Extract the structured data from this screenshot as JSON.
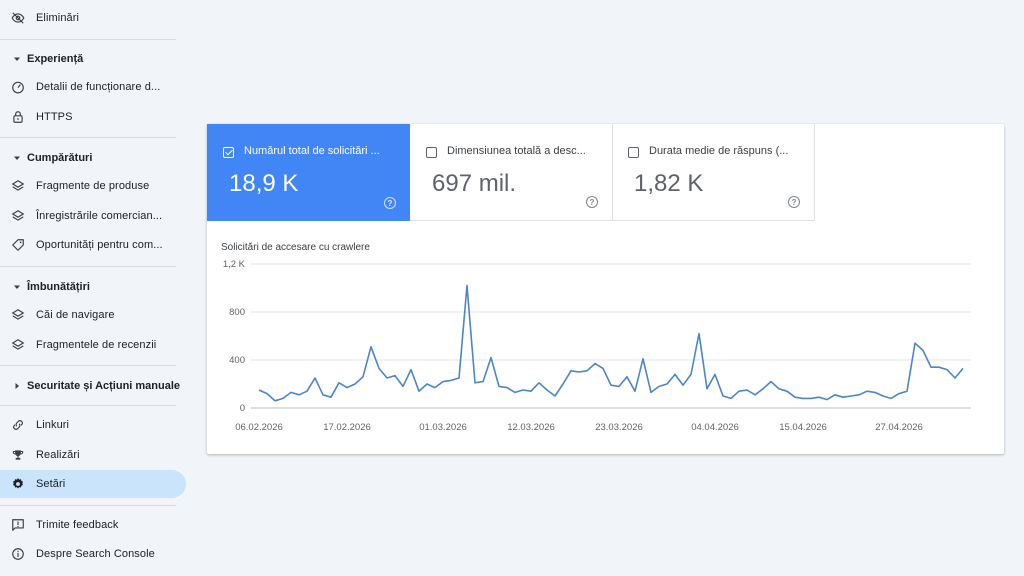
{
  "sidebar": {
    "items": [
      {
        "id": "eliminari",
        "label": "Eliminări",
        "icon": "eye-off-icon"
      },
      {
        "id": "detalii",
        "label": "Detalii de funcționare d...",
        "icon": "speedometer-icon"
      },
      {
        "id": "https",
        "label": "HTTPS",
        "icon": "lock-icon"
      },
      {
        "id": "fragmente-produse",
        "label": "Fragmente de produse",
        "icon": "layers-icon"
      },
      {
        "id": "inregistrari",
        "label": "Înregistrările comercian...",
        "icon": "layers-icon"
      },
      {
        "id": "oportunitati",
        "label": "Oportunități pentru com...",
        "icon": "tag-icon"
      },
      {
        "id": "cai-navigare",
        "label": "Căi de navigare",
        "icon": "layers-icon"
      },
      {
        "id": "fragmente-recenzii",
        "label": "Fragmentele de recenzii",
        "icon": "layers-icon"
      },
      {
        "id": "linkuri",
        "label": "Linkuri",
        "icon": "link-icon"
      },
      {
        "id": "realizari",
        "label": "Realizări",
        "icon": "trophy-icon"
      },
      {
        "id": "setari",
        "label": "Setări",
        "icon": "gear-icon",
        "active": true
      },
      {
        "id": "feedback",
        "label": "Trimite feedback",
        "icon": "feedback-icon"
      },
      {
        "id": "despre",
        "label": "Despre Search Console",
        "icon": "info-icon"
      }
    ],
    "sections": [
      {
        "id": "experienta",
        "label": "Experiență",
        "expanded": true
      },
      {
        "id": "cumparaturi",
        "label": "Cumpărături",
        "expanded": true
      },
      {
        "id": "imbunatatiri",
        "label": "Îmbunătățiri",
        "expanded": true
      },
      {
        "id": "securitate",
        "label": "Securitate și Acțiuni manuale",
        "expanded": false
      }
    ]
  },
  "metrics": [
    {
      "label": "Numărul total de solicitări ...",
      "value": "18,9 K",
      "selected": true
    },
    {
      "label": "Dimensiunea totală a desc...",
      "value": "697 mil.",
      "selected": false
    },
    {
      "label": "Durata medie de răspuns (...",
      "value": "1,82 K",
      "selected": false
    }
  ],
  "colors": {
    "accent": "#4285f4",
    "active_nav": "#c9e4fb",
    "line": "#4a86c8"
  },
  "chart_data": {
    "type": "line",
    "title": "Solicitări de accesare cu crawlere",
    "y_ticks": [
      "0",
      "400",
      "800",
      "1,2 K"
    ],
    "ylim": [
      0,
      1200
    ],
    "x_ticks": [
      "06.02.2026",
      "17.02.2026",
      "01.03.2026",
      "12.03.2026",
      "23.03.2026",
      "04.04.2026",
      "15.04.2026",
      "27.04.2026"
    ],
    "start_date": "06.02.2026",
    "grid": true,
    "series": [
      {
        "values": [
          150,
          120,
          60,
          80,
          130,
          110,
          140,
          250,
          110,
          90,
          210,
          170,
          200,
          260,
          510,
          330,
          250,
          270,
          180,
          320,
          140,
          200,
          170,
          220,
          230,
          250,
          1020,
          210,
          220,
          420,
          180,
          170,
          130,
          150,
          140,
          210,
          150,
          100,
          200,
          310,
          300,
          310,
          370,
          330,
          190,
          180,
          260,
          140,
          410,
          130,
          180,
          200,
          280,
          190,
          280,
          620,
          160,
          280,
          100,
          80,
          140,
          150,
          110,
          160,
          220,
          160,
          140,
          90,
          80,
          80,
          90,
          70,
          110,
          90,
          100,
          110,
          140,
          130,
          100,
          80,
          120,
          140,
          540,
          480,
          340,
          340,
          320,
          250,
          330
        ]
      }
    ]
  }
}
